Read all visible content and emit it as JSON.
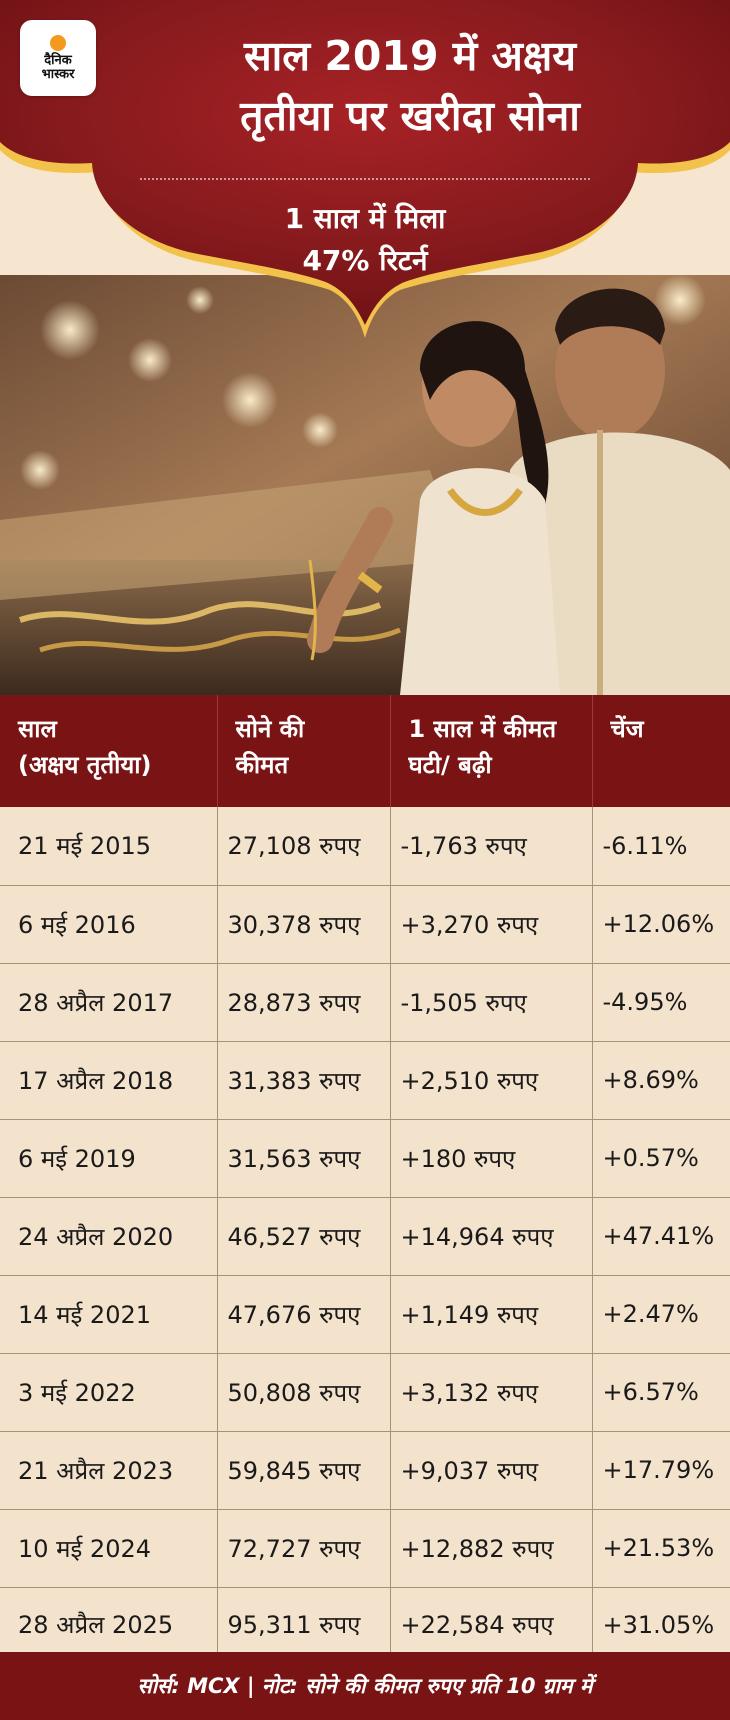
{
  "brand": {
    "logo_text_line1": "दैनिक",
    "logo_text_line2": "भास्कर"
  },
  "header": {
    "title_line1": "साल 2019 में अक्षय",
    "title_line2": "तृतीया पर खरीदा सोना",
    "subtitle_line1": "1 साल में मिला",
    "subtitle_line2": "47% रिटर्न"
  },
  "colors": {
    "maroon": "#7a1414",
    "gold_border": "#f3c24a",
    "cream_background": "#f3e2cc"
  },
  "table": {
    "headers": [
      {
        "line1": "साल",
        "line2": "(अक्षय तृतीया)"
      },
      {
        "line1": "सोने की",
        "line2": "कीमत"
      },
      {
        "line1": "1 साल में कीमत",
        "line2": "घटी/ बढ़ी"
      },
      {
        "line1": "चेंज",
        "line2": ""
      }
    ],
    "rows": [
      [
        "21 मई 2015",
        "27,108 रुपए",
        "-1,763 रुपए",
        "-6.11%"
      ],
      [
        "6 मई 2016",
        "30,378 रुपए",
        "+3,270 रुपए",
        "+12.06%"
      ],
      [
        "28 अप्रैल 2017",
        "28,873 रुपए",
        "-1,505 रुपए",
        "-4.95%"
      ],
      [
        "17 अप्रैल 2018",
        "31,383 रुपए",
        "+2,510 रुपए",
        "+8.69%"
      ],
      [
        "6 मई 2019",
        "31,563 रुपए",
        "+180 रुपए",
        "+0.57%"
      ],
      [
        "24 अप्रैल 2020",
        "46,527 रुपए",
        "+14,964 रुपए",
        "+47.41%"
      ],
      [
        "14 मई 2021",
        "47,676 रुपए",
        "+1,149 रुपए",
        "+2.47%"
      ],
      [
        "3 मई 2022",
        "50,808 रुपए",
        "+3,132 रुपए",
        "+6.57%"
      ],
      [
        "21 अप्रैल 2023",
        "59,845 रुपए",
        "+9,037 रुपए",
        "+17.79%"
      ],
      [
        "10 मई 2024",
        "72,727 रुपए",
        "+12,882 रुपए",
        "+21.53%"
      ],
      [
        "28 अप्रैल 2025",
        "95,311 रुपए",
        "+22,584 रुपए",
        "+31.05%"
      ]
    ]
  },
  "footer": {
    "text": "सोर्स: MCX | नोट: सोने की कीमत रुपए प्रति 10 ग्राम में"
  }
}
